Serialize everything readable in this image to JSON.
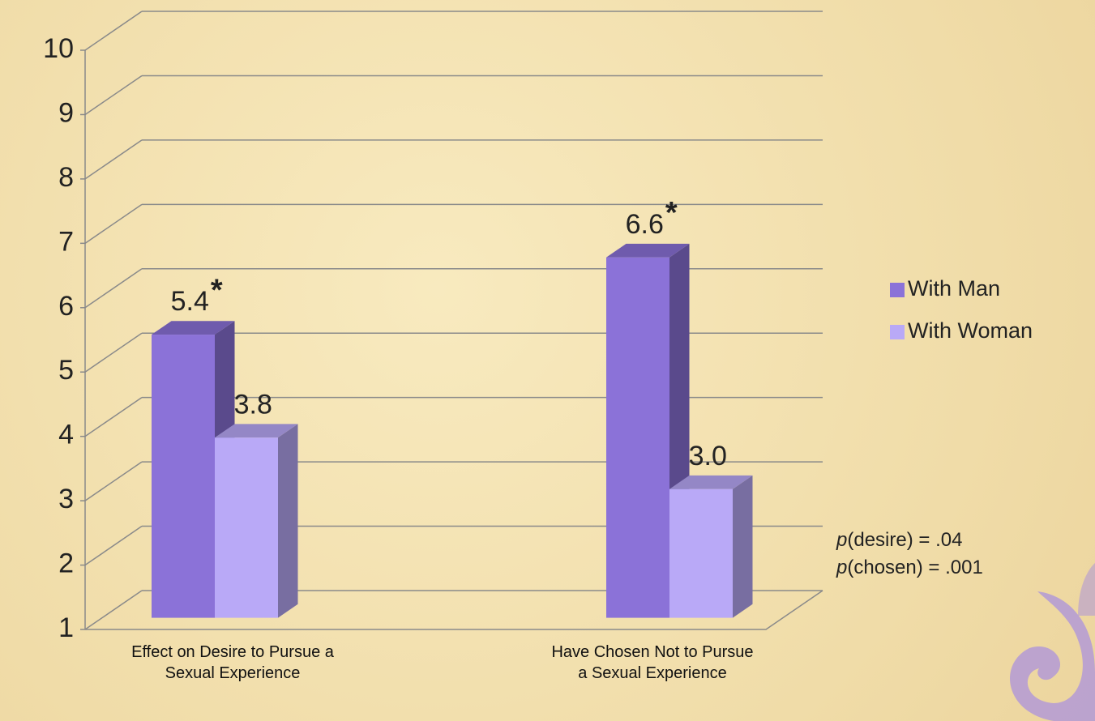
{
  "chart_data": {
    "type": "bar3d",
    "categories": [
      "Effect on Desire to Pursue a Sexual Experience",
      "Have Chosen Not to Pursue a Sexual Experience"
    ],
    "series": [
      {
        "name": "With Man",
        "color": "#8b72d8",
        "values": [
          5.4,
          6.6
        ],
        "value_labels": [
          "5.4",
          "6.6"
        ],
        "annotations": [
          "*",
          "*"
        ]
      },
      {
        "name": "With Woman",
        "color": "#b9a9f7",
        "values": [
          3.8,
          3.0
        ],
        "value_labels": [
          "3.8",
          "3.0"
        ]
      }
    ],
    "ylim": [
      1,
      10
    ],
    "yticks": [
      1,
      2,
      3,
      4,
      5,
      6,
      7,
      8,
      9,
      10
    ],
    "grid": true,
    "legend": "right",
    "notes": [
      "p(desire) = .04",
      "p(chosen) = .001"
    ]
  }
}
